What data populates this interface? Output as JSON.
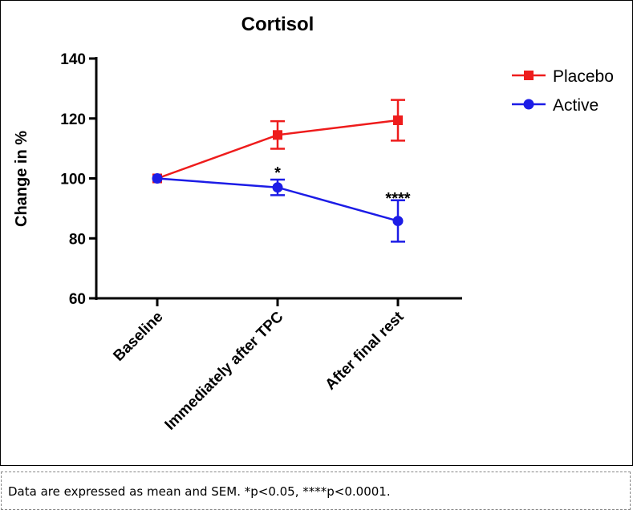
{
  "chart_data": {
    "type": "line",
    "title": "Cortisol",
    "ylabel": "Change in %",
    "xlabel": "",
    "ylim": [
      60,
      140
    ],
    "yticks": [
      60,
      80,
      100,
      120,
      140
    ],
    "categories": [
      "Baseline",
      "Immediately after TPC",
      "After final rest"
    ],
    "grid": false,
    "legend": "top-right",
    "series": [
      {
        "name": "Placebo",
        "color": "#ee1c1c",
        "marker": "square",
        "values": [
          100,
          114.5,
          119.4
        ],
        "errors": [
          0,
          4.6,
          6.8
        ]
      },
      {
        "name": "Active",
        "color": "#1c1ce6",
        "marker": "circle",
        "values": [
          100,
          97,
          85.8
        ],
        "errors": [
          0,
          2.6,
          6.9
        ]
      }
    ],
    "annotations": [
      {
        "category": "Immediately after TPC",
        "text": "*"
      },
      {
        "category": "After final rest",
        "text": "****"
      }
    ]
  },
  "caption": "Data are expressed as mean and SEM. *p<0.05, ****p<0.0001."
}
